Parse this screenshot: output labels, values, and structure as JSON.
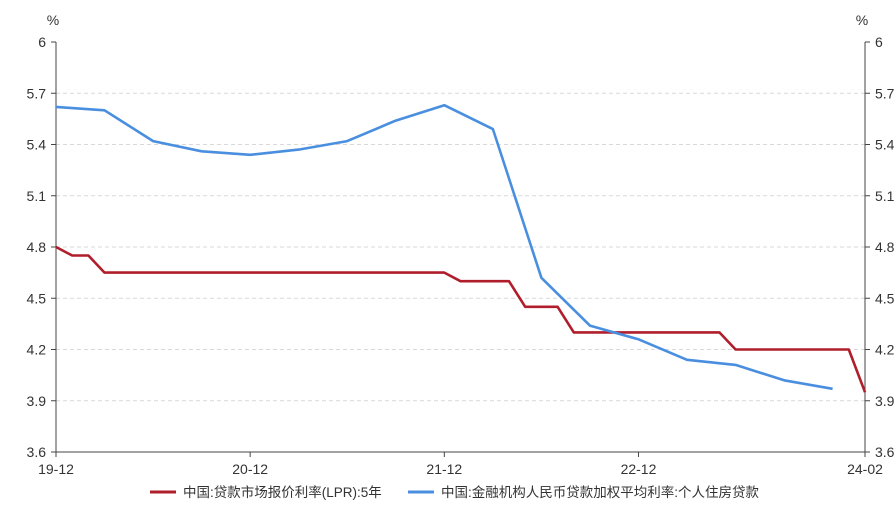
{
  "chart_data": {
    "type": "line",
    "y_unit_left": "%",
    "y_unit_right": "%",
    "ylim": [
      3.6,
      6.0
    ],
    "yticks": [
      "3.6",
      "3.9",
      "4.2",
      "4.5",
      "4.8",
      "5.1",
      "5.4",
      "5.7",
      "6"
    ],
    "xticks": [
      "19-12",
      "20-12",
      "21-12",
      "22-12",
      "24-02"
    ],
    "grid": "horizontal-dashed",
    "legend_position": "bottom",
    "series": [
      {
        "name": "中国:贷款市场报价利率(LPR):5年",
        "color": "#b01e2b",
        "points": [
          [
            "2019-12",
            4.8
          ],
          [
            "2020-01",
            4.75
          ],
          [
            "2020-02",
            4.75
          ],
          [
            "2020-03",
            4.65
          ],
          [
            "2020-04",
            4.65
          ],
          [
            "2021-12",
            4.65
          ],
          [
            "2022-01",
            4.6
          ],
          [
            "2022-04",
            4.6
          ],
          [
            "2022-05",
            4.45
          ],
          [
            "2022-07",
            4.45
          ],
          [
            "2022-08",
            4.3
          ],
          [
            "2023-05",
            4.3
          ],
          [
            "2023-06",
            4.2
          ],
          [
            "2024-01",
            4.2
          ],
          [
            "2024-02",
            3.95
          ]
        ]
      },
      {
        "name": "中国:金融机构人民币贷款加权平均利率:个人住房贷款",
        "color": "#4a8fdf",
        "points": [
          [
            "2019-12",
            5.62
          ],
          [
            "2020-03",
            5.6
          ],
          [
            "2020-06",
            5.42
          ],
          [
            "2020-09",
            5.36
          ],
          [
            "2020-12",
            5.34
          ],
          [
            "2021-03",
            5.37
          ],
          [
            "2021-06",
            5.42
          ],
          [
            "2021-09",
            5.54
          ],
          [
            "2021-12",
            5.63
          ],
          [
            "2022-03",
            5.49
          ],
          [
            "2022-06",
            4.62
          ],
          [
            "2022-09",
            4.34
          ],
          [
            "2022-12",
            4.26
          ],
          [
            "2023-03",
            4.14
          ],
          [
            "2023-06",
            4.11
          ],
          [
            "2023-09",
            4.02
          ],
          [
            "2023-12",
            3.97
          ]
        ]
      }
    ]
  }
}
